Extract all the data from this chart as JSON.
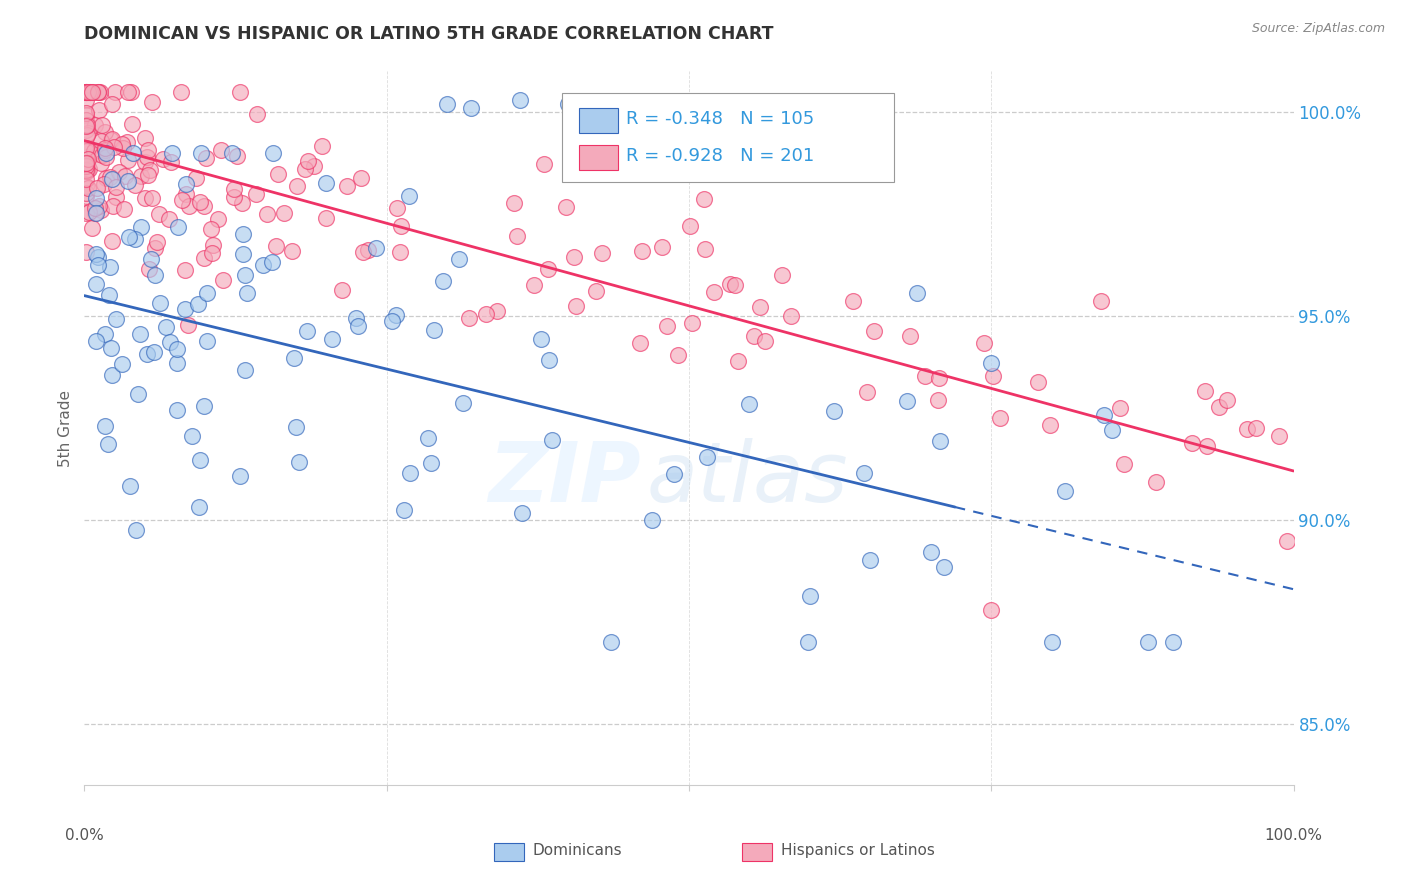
{
  "title": "DOMINICAN VS HISPANIC OR LATINO 5TH GRADE CORRELATION CHART",
  "source": "Source: ZipAtlas.com",
  "ylabel": "5th Grade",
  "blue_R": -0.348,
  "blue_N": 105,
  "pink_R": -0.928,
  "pink_N": 201,
  "blue_color": "#aaccee",
  "pink_color": "#f4aabb",
  "blue_line_color": "#3366bb",
  "pink_line_color": "#ee3366",
  "legend_label_blue": "Dominicans",
  "legend_label_pink": "Hispanics or Latinos",
  "watermark_zip": "ZIP",
  "watermark_atlas": "atlas",
  "right_axis_color": "#3399dd",
  "yticks": [
    0.85,
    0.9,
    0.95,
    1.0
  ],
  "ytick_labels": [
    "85.0%",
    "90.0%",
    "95.0%",
    "100.0%"
  ],
  "ylim": [
    0.835,
    1.01
  ],
  "xlim": [
    0.0,
    1.0
  ],
  "blue_trend_x0": 0.0,
  "blue_trend_y0": 0.955,
  "blue_trend_x1": 1.0,
  "blue_trend_y1": 0.883,
  "pink_trend_x0": 0.0,
  "pink_trend_y0": 0.993,
  "pink_trend_x1": 1.0,
  "pink_trend_y1": 0.912
}
